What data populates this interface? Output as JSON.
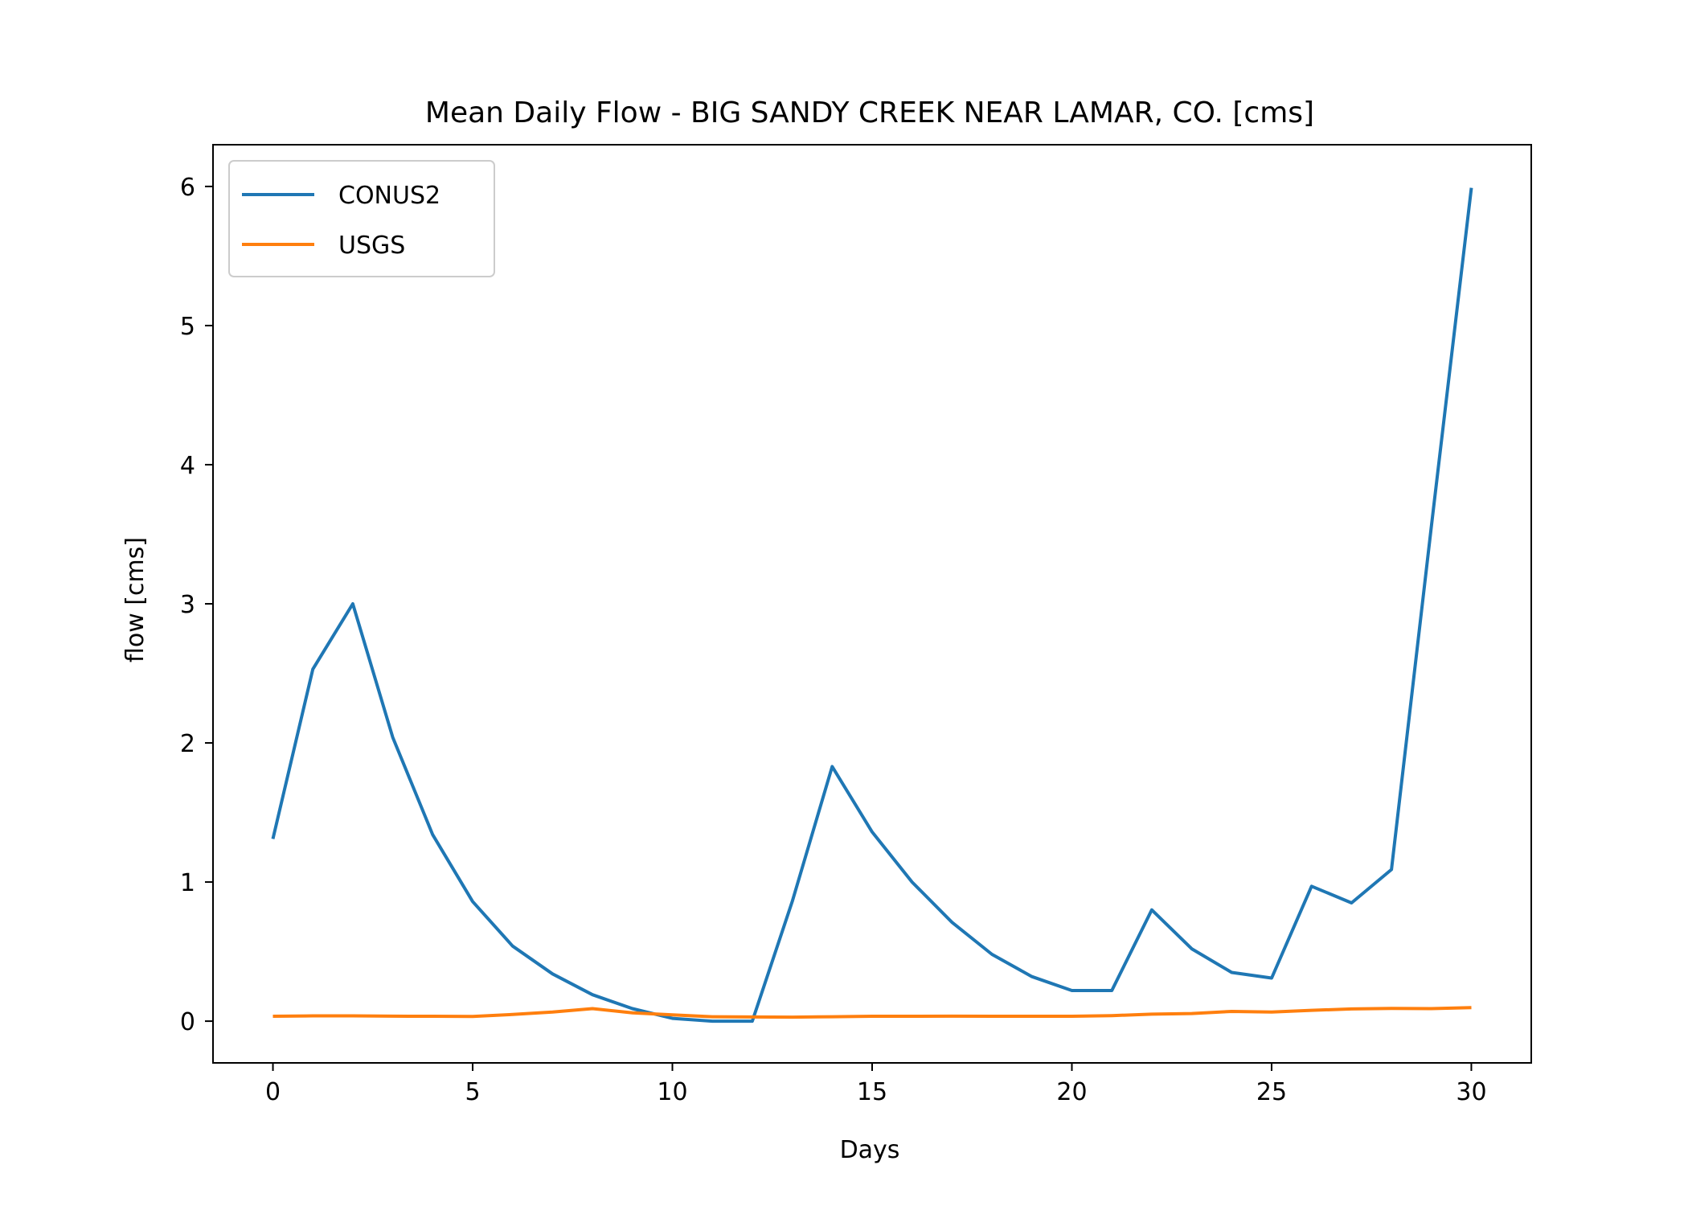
{
  "chart_data": {
    "type": "line",
    "title": "Mean Daily Flow - BIG SANDY CREEK NEAR LAMAR, CO. [cms]",
    "xlabel": "Days",
    "ylabel": "flow [cms]",
    "xlim": [
      -1.5,
      31.5
    ],
    "ylim": [
      -0.3,
      6.3
    ],
    "xticks": [
      0,
      5,
      10,
      15,
      20,
      25,
      30
    ],
    "yticks": [
      0,
      1,
      2,
      3,
      4,
      5,
      6
    ],
    "grid": false,
    "legend_position": "upper-left",
    "x": [
      0,
      1,
      2,
      3,
      4,
      5,
      6,
      7,
      8,
      9,
      10,
      11,
      12,
      13,
      14,
      15,
      16,
      17,
      18,
      19,
      20,
      21,
      22,
      23,
      24,
      25,
      26,
      27,
      28,
      29,
      30
    ],
    "series": [
      {
        "name": "CONUS2",
        "color": "#1f77b4",
        "values": [
          1.31,
          2.53,
          3.0,
          2.04,
          1.34,
          0.86,
          0.54,
          0.34,
          0.19,
          0.09,
          0.02,
          0.0,
          0.0,
          0.86,
          1.83,
          1.36,
          1.0,
          0.71,
          0.48,
          0.32,
          0.22,
          0.22,
          0.8,
          0.52,
          0.35,
          0.31,
          0.97,
          0.85,
          1.09,
          3.56,
          5.99
        ]
      },
      {
        "name": "USGS",
        "color": "#ff7f0e",
        "values": [
          0.035,
          0.038,
          0.038,
          0.036,
          0.035,
          0.034,
          0.048,
          0.065,
          0.09,
          0.06,
          0.045,
          0.032,
          0.03,
          0.029,
          0.032,
          0.035,
          0.035,
          0.036,
          0.035,
          0.035,
          0.035,
          0.04,
          0.05,
          0.055,
          0.07,
          0.065,
          0.078,
          0.088,
          0.092,
          0.09,
          0.097
        ]
      }
    ]
  }
}
